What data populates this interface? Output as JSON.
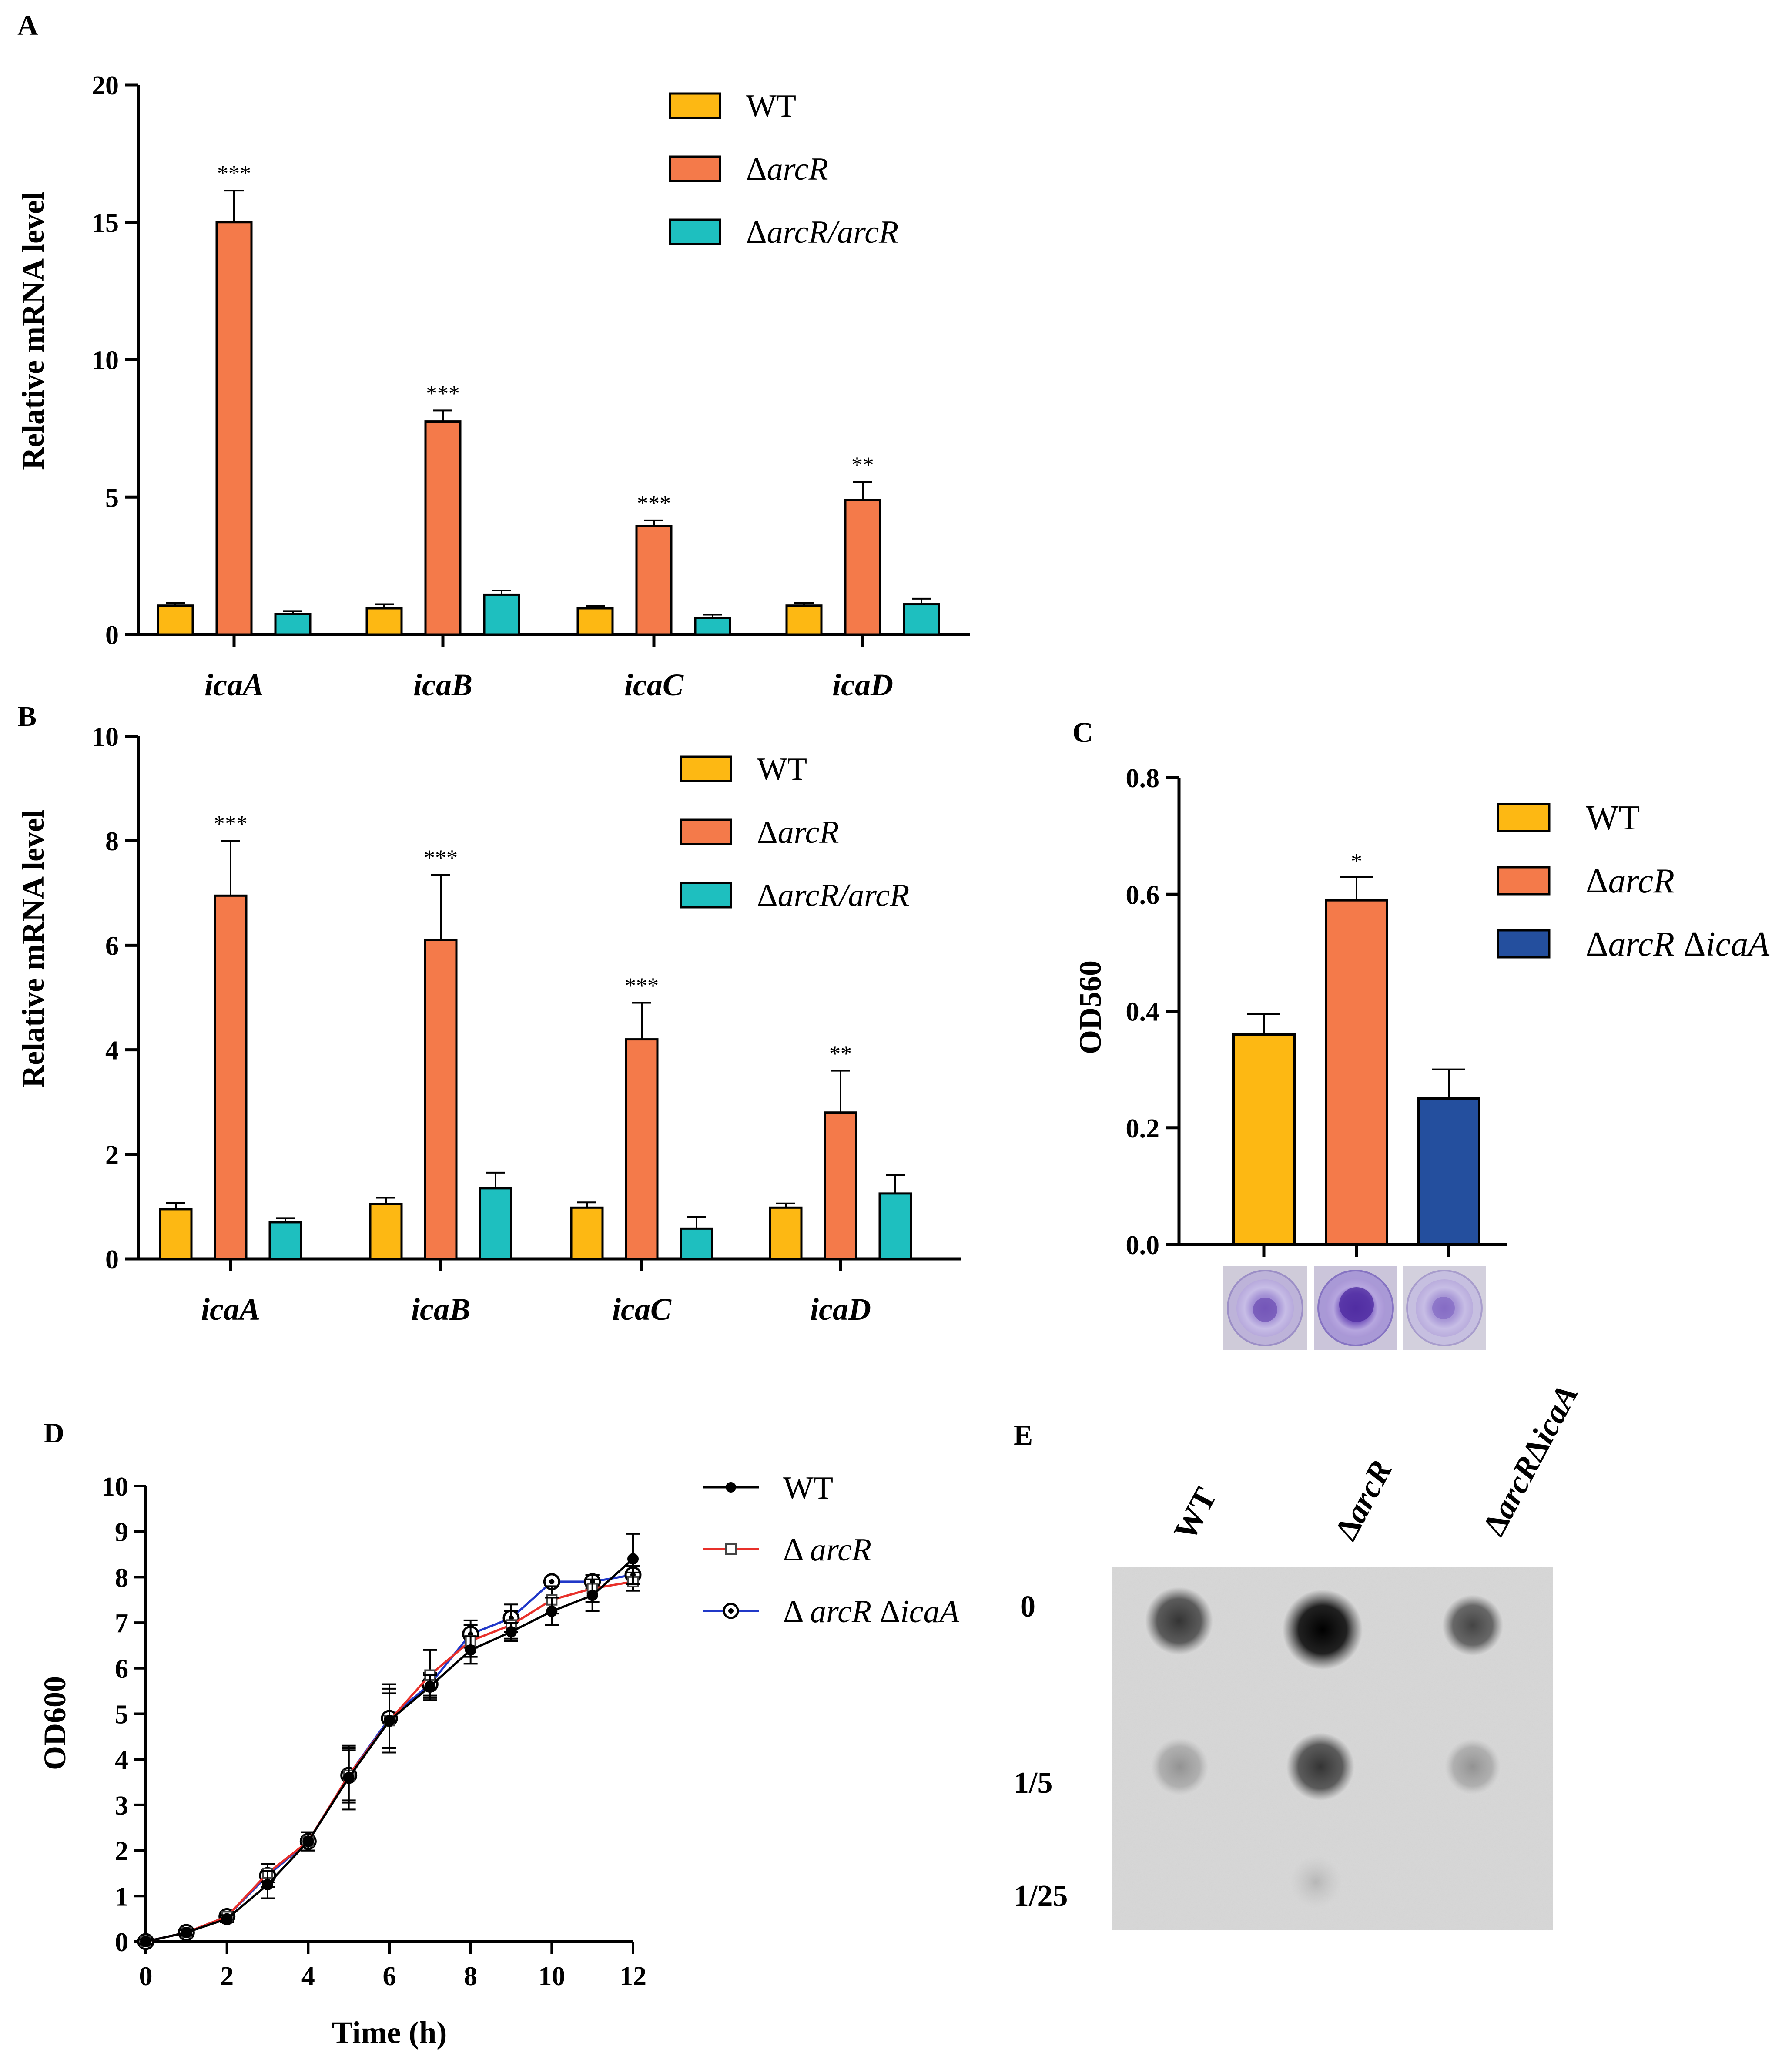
{
  "panels": {
    "a": {
      "letter": "A",
      "ylabel": "Relative mRNA level",
      "ylim": [
        0,
        20
      ],
      "yticks": [
        "0",
        "5",
        "10",
        "15",
        "20"
      ],
      "categories": [
        "icaA",
        "icaB",
        "icaC",
        "icaD"
      ],
      "legend": [
        {
          "label": "WT"
        },
        {
          "label": "Δ",
          "label_italic": "arcR"
        },
        {
          "label": "Δ",
          "label_italic": "arcR/arcR"
        }
      ]
    },
    "b": {
      "letter": "B",
      "ylabel": "Relative mRNA level",
      "ylim": [
        0,
        10
      ],
      "yticks": [
        "0",
        "2",
        "4",
        "6",
        "8",
        "10"
      ],
      "categories": [
        "icaA",
        "icaB",
        "icaC",
        "icaD"
      ],
      "legend": [
        {
          "label": "WT"
        },
        {
          "label": "Δ",
          "label_italic": "arcR"
        },
        {
          "label": "Δ",
          "label_italic": "arcR/arcR"
        }
      ]
    },
    "c": {
      "letter": "C",
      "ylabel": "OD560",
      "ylim": [
        0,
        0.8
      ],
      "yticks": [
        "0.0",
        "0.2",
        "0.4",
        "0.6",
        "0.8"
      ],
      "legend": [
        {
          "label": "WT"
        },
        {
          "label": "Δ",
          "label_italic": "arcR"
        },
        {
          "label": "Δ",
          "label_italic": "arcR",
          "label_tail": " Δ",
          "label_italic2": "icaA"
        }
      ]
    },
    "d": {
      "letter": "D",
      "ylabel": "OD600",
      "xlabel": "Time (h)",
      "ylim": [
        0,
        10
      ],
      "xlim": [
        0,
        12
      ],
      "yticks": [
        "0",
        "1",
        "2",
        "3",
        "4",
        "5",
        "6",
        "7",
        "8",
        "9",
        "10"
      ],
      "xticks": [
        "0",
        "2",
        "4",
        "6",
        "8",
        "10",
        "12"
      ],
      "legend": [
        {
          "label": "WT"
        },
        {
          "label": "Δ ",
          "label_italic": "arcR"
        },
        {
          "label": "Δ ",
          "label_italic": "arcR",
          "label_tail": " Δ",
          "label_italic2": "icaA"
        }
      ]
    },
    "e": {
      "letter": "E",
      "columns": [
        {
          "label": "WT"
        },
        {
          "label": "Δ",
          "label_italic": "arcR"
        },
        {
          "label": "Δ",
          "label_italic": "arcR",
          "label_tail": "Δ",
          "label_italic2": "icaA"
        }
      ],
      "rows": [
        "0",
        "1/5",
        "1/25"
      ]
    }
  },
  "colors": {
    "wt": "#fdb813",
    "arcr": "#f47a4a",
    "comp": "#1ebfbf",
    "double": "#244f9e",
    "line_wt": "#000000",
    "line_arcr": "#e8302a",
    "line_double": "#2038c8"
  },
  "chart_data": [
    {
      "id": "A",
      "type": "bar",
      "ylabel": "Relative mRNA level",
      "ylim": [
        0,
        20
      ],
      "categories": [
        "icaA",
        "icaB",
        "icaC",
        "icaD"
      ],
      "series": [
        {
          "name": "WT",
          "values": [
            1.05,
            0.95,
            0.95,
            1.05
          ],
          "errors": [
            0.1,
            0.15,
            0.08,
            0.1
          ]
        },
        {
          "name": "ΔarcR",
          "values": [
            15.0,
            7.75,
            3.95,
            4.9
          ],
          "errors": [
            1.15,
            0.4,
            0.2,
            0.65
          ]
        },
        {
          "name": "ΔarcR/arcR",
          "values": [
            0.75,
            1.45,
            0.6,
            1.1
          ],
          "errors": [
            0.1,
            0.15,
            0.12,
            0.2
          ]
        }
      ],
      "annotations": [
        "***",
        "***",
        "***",
        "**"
      ]
    },
    {
      "id": "B",
      "type": "bar",
      "ylabel": "Relative mRNA level",
      "ylim": [
        0,
        10
      ],
      "categories": [
        "icaA",
        "icaB",
        "icaC",
        "icaD"
      ],
      "series": [
        {
          "name": "WT",
          "values": [
            0.95,
            1.05,
            0.98,
            0.98
          ],
          "errors": [
            0.12,
            0.12,
            0.1,
            0.08
          ]
        },
        {
          "name": "ΔarcR",
          "values": [
            6.95,
            6.1,
            4.2,
            2.8
          ],
          "errors": [
            1.05,
            1.25,
            0.7,
            0.8
          ]
        },
        {
          "name": "ΔarcR/arcR",
          "values": [
            0.7,
            1.35,
            0.58,
            1.25
          ],
          "errors": [
            0.08,
            0.3,
            0.22,
            0.35
          ]
        }
      ],
      "annotations": [
        "***",
        "***",
        "***",
        "**"
      ]
    },
    {
      "id": "C",
      "type": "bar",
      "ylabel": "OD560",
      "ylim": [
        0,
        0.8
      ],
      "categories": [
        "WT",
        "ΔarcR",
        "ΔarcR ΔicaA"
      ],
      "values": [
        0.36,
        0.59,
        0.25
      ],
      "errors": [
        0.035,
        0.04,
        0.05
      ],
      "annotations": [
        "",
        "*",
        ""
      ]
    },
    {
      "id": "D",
      "type": "line",
      "xlabel": "Time (h)",
      "ylabel": "OD600",
      "xlim": [
        0,
        12
      ],
      "ylim": [
        0,
        10
      ],
      "x": [
        0,
        1,
        2,
        3,
        4,
        5,
        6,
        7,
        8,
        9,
        10,
        11,
        12
      ],
      "series": [
        {
          "name": "WT",
          "values": [
            0.0,
            0.2,
            0.5,
            1.25,
            2.2,
            3.6,
            4.85,
            5.6,
            6.4,
            6.8,
            7.25,
            7.6,
            8.4
          ],
          "errors": [
            0.05,
            0.05,
            0.08,
            0.3,
            0.2,
            0.7,
            0.7,
            0.25,
            0.3,
            0.2,
            0.3,
            0.35,
            0.55
          ]
        },
        {
          "name": "ΔarcR",
          "values": [
            0.0,
            0.2,
            0.55,
            1.5,
            2.2,
            3.65,
            4.85,
            5.85,
            6.6,
            6.95,
            7.5,
            7.75,
            7.9
          ],
          "errors": [
            0.05,
            0.05,
            0.1,
            0.2,
            0.2,
            0.55,
            0.6,
            0.55,
            0.35,
            0.3,
            0.3,
            0.3,
            0.2
          ]
        },
        {
          "name": "ΔarcR ΔicaA",
          "values": [
            0.0,
            0.2,
            0.55,
            1.45,
            2.2,
            3.65,
            4.9,
            5.65,
            6.75,
            7.1,
            7.9,
            7.9,
            8.05
          ],
          "errors": [
            0.05,
            0.05,
            0.08,
            0.25,
            0.2,
            0.6,
            0.75,
            0.25,
            0.3,
            0.3,
            0.1,
            0.15,
            0.2
          ]
        }
      ]
    }
  ]
}
